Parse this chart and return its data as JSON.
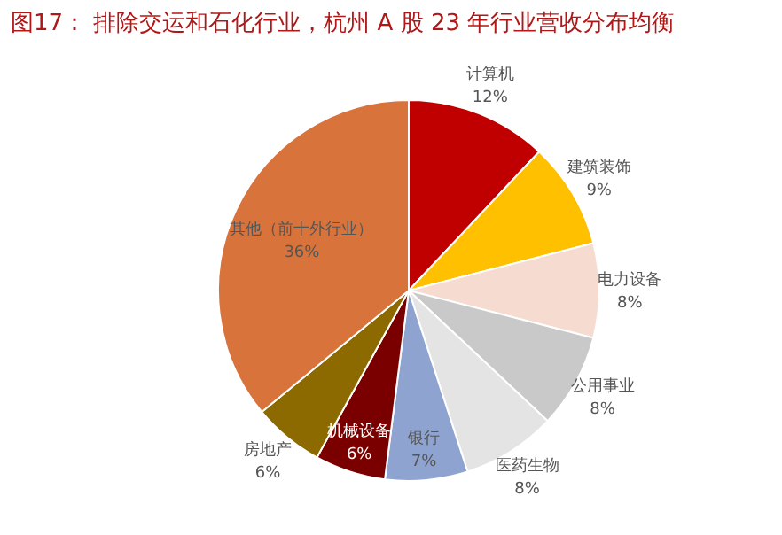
{
  "chart_data": {
    "type": "pie",
    "title": "图17：  排除交运和石化行业，杭州 A 股 23 年行业营收分布均衡",
    "categories": [
      "计算机",
      "建筑装饰",
      "电力设备",
      "公用事业",
      "医药生物",
      "银行",
      "机械设备",
      "房地产",
      "其他（前十外行业）"
    ],
    "values": [
      12,
      9,
      8,
      8,
      8,
      7,
      6,
      6,
      36
    ],
    "value_labels": [
      "12%",
      "9%",
      "8%",
      "8%",
      "8%",
      "7%",
      "6%",
      "6%",
      "36%"
    ],
    "colors": [
      "#c00000",
      "#ffc000",
      "#f6dbd0",
      "#c9c9c9",
      "#e4e4e4",
      "#8ea3cf",
      "#7a0000",
      "#8c6a00",
      "#d8733c"
    ],
    "legend": false
  }
}
